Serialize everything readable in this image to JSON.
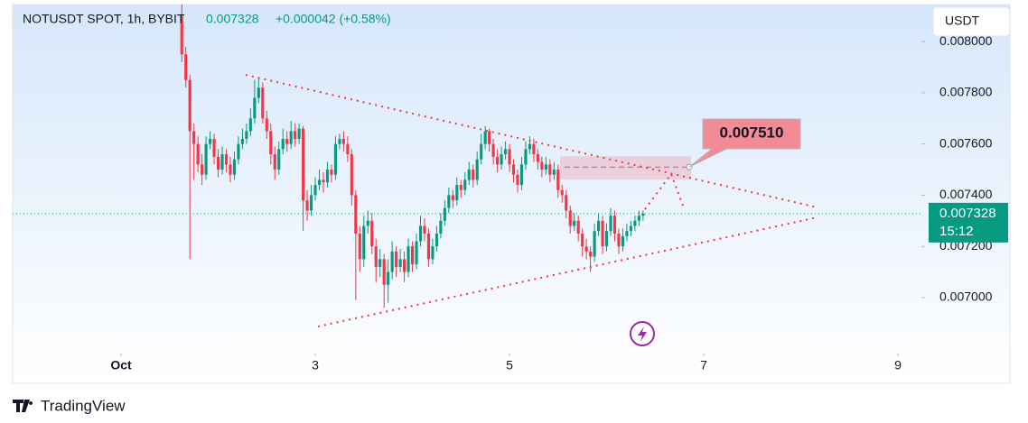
{
  "chart_data": {
    "type": "candlestick",
    "title": "NOTUSDT SPOT, 1h, BYBIT",
    "header_price": 0.007328,
    "header_change": "+0.000042 (+0.58%)",
    "currency": "USDT",
    "up_color": "#089981",
    "down_color": "#f23645",
    "xlim": [
      -26.8,
      197.8
    ],
    "xticks": [
      {
        "value": 0,
        "label": "Oct"
      },
      {
        "value": 48,
        "label": "3"
      },
      {
        "value": 96,
        "label": "5"
      },
      {
        "value": 144,
        "label": "7"
      },
      {
        "value": 192,
        "label": "9"
      }
    ],
    "ylim": [
      0.006665,
      0.008145
    ],
    "yticks": [
      {
        "value": 0.007,
        "label": "0.007000"
      },
      {
        "value": 0.0072,
        "label": "0.007200"
      },
      {
        "value": 0.0074,
        "label": "0.007400"
      },
      {
        "value": 0.0076,
        "label": "0.007600"
      },
      {
        "value": 0.0078,
        "label": "0.007800"
      },
      {
        "value": 0.008,
        "label": "0.008000"
      }
    ],
    "last_price": {
      "value": 0.007328,
      "label": "0.007328"
    },
    "countdown": "15:12",
    "annotation": {
      "value": 0.00751,
      "label": "0.007510"
    },
    "x": [
      15,
      16,
      17,
      18,
      19,
      20,
      21,
      22,
      23,
      24,
      25,
      26,
      27,
      28,
      29,
      30,
      31,
      32,
      33,
      34,
      35,
      36,
      37,
      38,
      39,
      40,
      41,
      42,
      43,
      44,
      45,
      46,
      47,
      48,
      49,
      50,
      51,
      52,
      53,
      54,
      55,
      56,
      57,
      58,
      59,
      60,
      61,
      62,
      63,
      64,
      65,
      66,
      67,
      68,
      69,
      70,
      71,
      72,
      73,
      74,
      75,
      76,
      77,
      78,
      79,
      80,
      81,
      82,
      83,
      84,
      85,
      86,
      87,
      88,
      89,
      90,
      91,
      92,
      93,
      94,
      95,
      96,
      97,
      98,
      99,
      100,
      101,
      102,
      103,
      104,
      105,
      106,
      107,
      108,
      109,
      110,
      111,
      112,
      113,
      114,
      115,
      116,
      117,
      118,
      119,
      120,
      121,
      122,
      123,
      124,
      125,
      126,
      127,
      128,
      129
    ],
    "open": [
      0.0081,
      0.00795,
      0.00785,
      0.00765,
      0.0076,
      0.00752,
      0.00748,
      0.0076,
      0.00762,
      0.00755,
      0.0075,
      0.00756,
      0.00752,
      0.00748,
      0.00754,
      0.0076,
      0.00762,
      0.00765,
      0.0077,
      0.00778,
      0.00782,
      0.0077,
      0.00765,
      0.00756,
      0.0075,
      0.00758,
      0.00762,
      0.0076,
      0.00765,
      0.00762,
      0.00766,
      0.00738,
      0.00734,
      0.0074,
      0.00744,
      0.00746,
      0.00745,
      0.0075,
      0.00748,
      0.0076,
      0.00762,
      0.0076,
      0.00756,
      0.0074,
      0.00725,
      0.00715,
      0.00728,
      0.0073,
      0.0072,
      0.00712,
      0.00715,
      0.00705,
      0.0071,
      0.00718,
      0.00712,
      0.00715,
      0.0071,
      0.0072,
      0.00713,
      0.00722,
      0.00728,
      0.00725,
      0.00715,
      0.0072,
      0.00725,
      0.0073,
      0.00735,
      0.0074,
      0.00738,
      0.00744,
      0.00742,
      0.00746,
      0.0075,
      0.00746,
      0.00754,
      0.0076,
      0.00765,
      0.0076,
      0.00755,
      0.00752,
      0.00756,
      0.00758,
      0.00752,
      0.00748,
      0.00744,
      0.00752,
      0.00758,
      0.0076,
      0.00756,
      0.00753,
      0.0075,
      0.00752,
      0.00748,
      0.0075,
      0.00742,
      0.0074,
      0.00734,
      0.00728,
      0.0073,
      0.00725,
      0.0072,
      0.00718,
      0.00716,
      0.00726,
      0.0073,
      0.0072,
      0.00726,
      0.00732,
      0.00725,
      0.0072,
      0.00724,
      0.00726,
      0.00728,
      0.0073,
      0.00732
    ],
    "high": [
      0.00815,
      0.00798,
      0.00787,
      0.00768,
      0.00763,
      0.00756,
      0.00763,
      0.00765,
      0.00764,
      0.00758,
      0.00759,
      0.00758,
      0.00755,
      0.00757,
      0.00763,
      0.00766,
      0.00768,
      0.00774,
      0.00785,
      0.00786,
      0.00784,
      0.00773,
      0.00768,
      0.00759,
      0.00761,
      0.00766,
      0.00765,
      0.00769,
      0.00768,
      0.00768,
      0.00767,
      0.00742,
      0.00744,
      0.00747,
      0.0075,
      0.00749,
      0.00753,
      0.00752,
      0.00763,
      0.00764,
      0.00765,
      0.00763,
      0.00758,
      0.00742,
      0.00728,
      0.00732,
      0.00734,
      0.00733,
      0.00723,
      0.00719,
      0.00717,
      0.00715,
      0.00722,
      0.0072,
      0.00719,
      0.00718,
      0.00723,
      0.00722,
      0.00725,
      0.00732,
      0.00731,
      0.00727,
      0.00723,
      0.00728,
      0.00733,
      0.00738,
      0.00743,
      0.00742,
      0.00747,
      0.00746,
      0.00749,
      0.00753,
      0.00752,
      0.00757,
      0.00764,
      0.00767,
      0.00766,
      0.00762,
      0.00758,
      0.00759,
      0.00761,
      0.0076,
      0.00754,
      0.0075,
      0.00755,
      0.00761,
      0.00763,
      0.00762,
      0.00758,
      0.00755,
      0.00755,
      0.00754,
      0.00753,
      0.00752,
      0.00744,
      0.00742,
      0.00736,
      0.00733,
      0.00732,
      0.00727,
      0.00723,
      0.0072,
      0.00729,
      0.00733,
      0.00732,
      0.00729,
      0.00735,
      0.00734,
      0.00727,
      0.00727,
      0.00729,
      0.0073,
      0.00732,
      0.00734,
      0.00734
    ],
    "low": [
      0.00792,
      0.00782,
      0.00715,
      0.00746,
      0.00749,
      0.00744,
      0.00746,
      0.00758,
      0.00752,
      0.00747,
      0.00748,
      0.00749,
      0.00745,
      0.00746,
      0.00752,
      0.00758,
      0.0076,
      0.00763,
      0.00768,
      0.00776,
      0.00768,
      0.00762,
      0.00752,
      0.00746,
      0.00748,
      0.00756,
      0.00757,
      0.00758,
      0.00759,
      0.0076,
      0.00726,
      0.0073,
      0.00732,
      0.00738,
      0.00742,
      0.00741,
      0.00743,
      0.00745,
      0.00746,
      0.00758,
      0.00757,
      0.00753,
      0.00736,
      0.00699,
      0.0071,
      0.00712,
      0.00725,
      0.00717,
      0.00706,
      0.00708,
      0.00696,
      0.00698,
      0.00707,
      0.00708,
      0.0071,
      0.00706,
      0.00708,
      0.0071,
      0.00711,
      0.0072,
      0.00722,
      0.00712,
      0.00713,
      0.00718,
      0.00723,
      0.00728,
      0.00733,
      0.00735,
      0.00736,
      0.00739,
      0.0074,
      0.00744,
      0.00743,
      0.00744,
      0.00752,
      0.00758,
      0.00757,
      0.00752,
      0.00749,
      0.0075,
      0.00754,
      0.00749,
      0.00745,
      0.00741,
      0.00742,
      0.0075,
      0.00756,
      0.00753,
      0.0075,
      0.00747,
      0.00748,
      0.00745,
      0.00746,
      0.00739,
      0.00737,
      0.00731,
      0.00725,
      0.00726,
      0.00722,
      0.00716,
      0.00715,
      0.0071,
      0.00714,
      0.00724,
      0.00717,
      0.00718,
      0.00724,
      0.00722,
      0.00717,
      0.00718,
      0.00722,
      0.00724,
      0.00726,
      0.00728,
      0.0073
    ],
    "close": [
      0.00795,
      0.00785,
      0.00765,
      0.0076,
      0.00752,
      0.00748,
      0.0076,
      0.00762,
      0.00755,
      0.0075,
      0.00756,
      0.00752,
      0.00748,
      0.00754,
      0.0076,
      0.00762,
      0.00765,
      0.0077,
      0.00778,
      0.00782,
      0.0077,
      0.00765,
      0.00756,
      0.0075,
      0.00758,
      0.00762,
      0.0076,
      0.00765,
      0.00762,
      0.00766,
      0.00738,
      0.00734,
      0.0074,
      0.00744,
      0.00746,
      0.00745,
      0.0075,
      0.00748,
      0.0076,
      0.00762,
      0.0076,
      0.00756,
      0.0074,
      0.00725,
      0.00715,
      0.00728,
      0.0073,
      0.0072,
      0.00712,
      0.00715,
      0.00705,
      0.0071,
      0.00718,
      0.00712,
      0.00715,
      0.0071,
      0.0072,
      0.00713,
      0.00722,
      0.00728,
      0.00725,
      0.00715,
      0.0072,
      0.00725,
      0.0073,
      0.00735,
      0.0074,
      0.00738,
      0.00744,
      0.00742,
      0.00746,
      0.0075,
      0.00746,
      0.00754,
      0.0076,
      0.00765,
      0.0076,
      0.00755,
      0.00752,
      0.00756,
      0.00758,
      0.00752,
      0.00748,
      0.00744,
      0.00752,
      0.00758,
      0.0076,
      0.00756,
      0.00753,
      0.0075,
      0.00752,
      0.00748,
      0.0075,
      0.00742,
      0.0074,
      0.00734,
      0.00728,
      0.0073,
      0.00725,
      0.0072,
      0.00718,
      0.00716,
      0.00726,
      0.0073,
      0.0072,
      0.00726,
      0.00732,
      0.00725,
      0.0072,
      0.00724,
      0.00726,
      0.00728,
      0.0073,
      0.00732,
      0.007328
    ]
  },
  "footer": {
    "brand": "TradingView"
  }
}
